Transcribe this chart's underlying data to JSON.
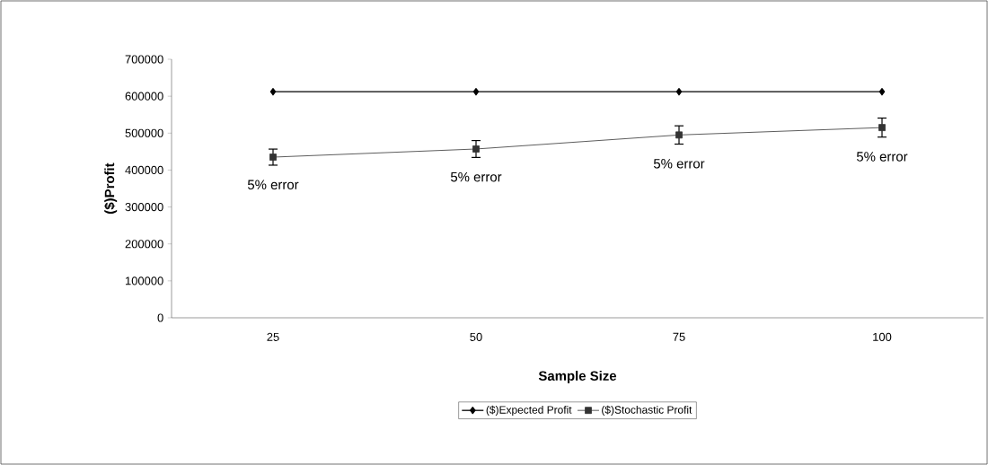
{
  "chart_data": {
    "type": "line",
    "xlabel": "Sample Size",
    "ylabel": "($)Profit",
    "categories": [
      "25",
      "50",
      "75",
      "100"
    ],
    "series": [
      {
        "name": "($)Expected Profit",
        "color": "#000000",
        "marker": "diamond",
        "values": [
          612000,
          612000,
          612000,
          612000
        ]
      },
      {
        "name": "($)Stochastic Profit",
        "color": "#333333",
        "marker": "square",
        "values": [
          435000,
          457000,
          495000,
          515000
        ],
        "errors": [
          21750,
          22850,
          24750,
          25750
        ]
      }
    ],
    "ylim": [
      0,
      700000
    ],
    "yticks": [
      0,
      100000,
      200000,
      300000,
      400000,
      500000,
      600000,
      700000
    ],
    "annotations": [
      "5% error",
      "5% error",
      "5% error",
      "5% error"
    ],
    "grid": false,
    "legend": "bottom"
  }
}
